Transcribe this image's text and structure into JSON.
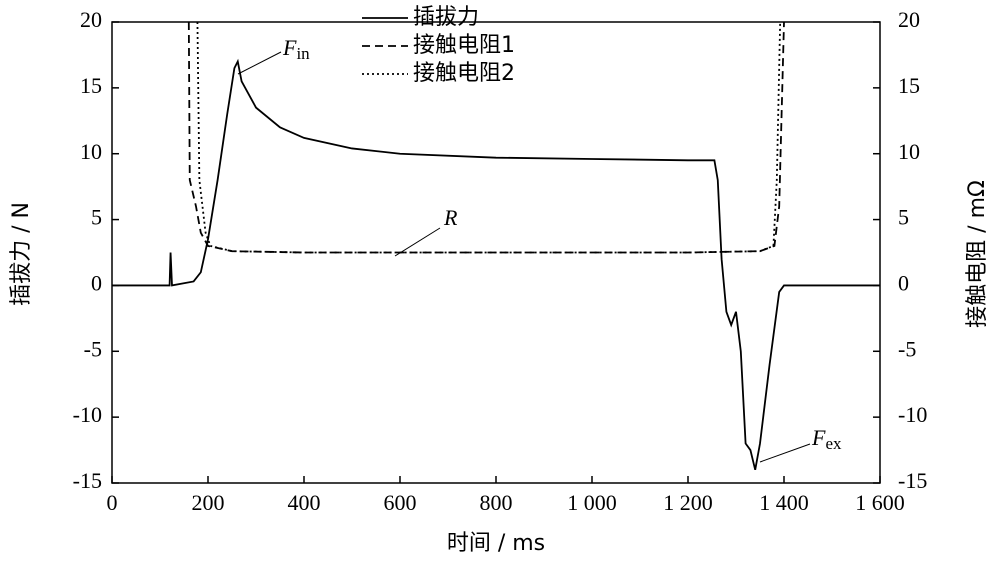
{
  "chart_data": {
    "type": "line",
    "xlabel": "时间 / ms",
    "ylabel": "插拔力 / N",
    "y2label": "接触电阻 / mΩ",
    "xlim": [
      0,
      1600
    ],
    "xticks": [
      0,
      200,
      400,
      600,
      800,
      {
        "value": 1000,
        "label": "1 000"
      },
      {
        "value": 1200,
        "label": "1 200"
      },
      {
        "value": 1400,
        "label": "1 400"
      },
      {
        "value": 1600,
        "label": "1 600"
      }
    ],
    "ylim": [
      -15,
      20
    ],
    "yticks": [
      -15,
      -10,
      -5,
      0,
      5,
      10,
      15,
      20
    ],
    "y2lim": [
      -15,
      20
    ],
    "y2ticks": [
      -15,
      -10,
      -5,
      0,
      5,
      10,
      15,
      20
    ],
    "grid": false,
    "legend": "upper center",
    "series": [
      {
        "name": "插拔力",
        "color": "#000000",
        "dash": "solid",
        "x": [
          0,
          120,
          122,
          125,
          170,
          185,
          200,
          220,
          240,
          255,
          262,
          270,
          300,
          350,
          400,
          500,
          600,
          800,
          1000,
          1200,
          1255,
          1262,
          1270,
          1280,
          1290,
          1300,
          1310,
          1320,
          1330,
          1340,
          1350,
          1370,
          1390,
          1400,
          1600
        ],
        "values": [
          0,
          0,
          2.5,
          0,
          0.3,
          1,
          3.5,
          8,
          13,
          16.5,
          17,
          15.5,
          13.5,
          12,
          11.2,
          10.4,
          10,
          9.7,
          9.6,
          9.5,
          9.5,
          8,
          2,
          -2,
          -3,
          -2,
          -5,
          -12,
          -12.5,
          -14,
          -12,
          -6,
          -0.5,
          0,
          0
        ]
      },
      {
        "name": "接触电阻1",
        "color": "#000000",
        "dash": "dashed",
        "axis": "y2",
        "x": [
          160,
          162,
          175,
          185,
          200,
          250,
          400,
          800,
          1200,
          1350,
          1380,
          1390,
          1400
        ],
        "values": [
          20,
          8,
          6,
          4,
          3,
          2.6,
          2.5,
          2.5,
          2.5,
          2.6,
          3,
          6,
          20
        ]
      },
      {
        "name": "接触电阻2",
        "color": "#000000",
        "dash": "dotted",
        "axis": "y2",
        "x": [
          178,
          182,
          195,
          205,
          250,
          400,
          800,
          1200,
          1350,
          1378,
          1385,
          1392
        ],
        "values": [
          20,
          8,
          4,
          3,
          2.6,
          2.5,
          2.5,
          2.5,
          2.6,
          3,
          8,
          20
        ]
      }
    ],
    "annotations": [
      {
        "text": "F",
        "sub": "in"
      },
      {
        "text": "R"
      },
      {
        "text": "F",
        "sub": "ex"
      }
    ]
  }
}
